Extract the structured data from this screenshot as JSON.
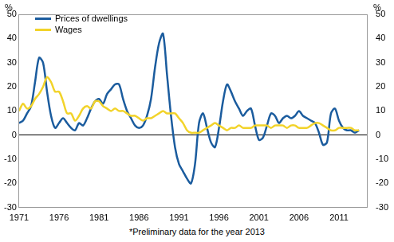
{
  "chart_data": {
    "type": "line",
    "y_label": "%",
    "y2_label": "%",
    "note": "*Preliminary data for the year 2013",
    "legend": "top-left",
    "grid": false,
    "x": [
      1971.0,
      1971.5,
      1972.0,
      1972.5,
      1973.0,
      1973.5,
      1974.0,
      1974.5,
      1975.0,
      1975.5,
      1976.0,
      1976.5,
      1977.0,
      1977.5,
      1978.0,
      1978.5,
      1979.0,
      1979.5,
      1980.0,
      1980.5,
      1981.0,
      1981.5,
      1982.0,
      1982.5,
      1983.0,
      1983.5,
      1984.0,
      1984.5,
      1985.0,
      1985.5,
      1986.0,
      1986.5,
      1987.0,
      1987.5,
      1988.0,
      1988.5,
      1989.0,
      1989.5,
      1990.0,
      1990.5,
      1991.0,
      1991.5,
      1992.0,
      1992.5,
      1993.0,
      1993.5,
      1994.0,
      1994.5,
      1995.0,
      1995.5,
      1996.0,
      1996.5,
      1997.0,
      1997.5,
      1998.0,
      1998.5,
      1999.0,
      1999.5,
      2000.0,
      2000.5,
      2001.0,
      2001.5,
      2002.0,
      2002.5,
      2003.0,
      2003.5,
      2004.0,
      2004.5,
      2005.0,
      2005.5,
      2006.0,
      2006.5,
      2007.0,
      2007.5,
      2008.0,
      2008.5,
      2009.0,
      2009.5,
      2010.0,
      2010.5,
      2011.0,
      2011.5,
      2012.0,
      2012.5,
      2013.0,
      2013.5
    ],
    "series": [
      {
        "name": "Prices of dwellings",
        "color": "#1b5c9e",
        "values": [
          5,
          6,
          9,
          12,
          22,
          32,
          30,
          18,
          8,
          3,
          5,
          7,
          5,
          3,
          2,
          5,
          4,
          7,
          11,
          14,
          15,
          13,
          17,
          19,
          21,
          21,
          15,
          10,
          7,
          4,
          3,
          4,
          8,
          15,
          28,
          38,
          42,
          25,
          8,
          -5,
          -12,
          -15,
          -18,
          -20,
          -12,
          5,
          9,
          3,
          -3,
          -5,
          3,
          14,
          21,
          18,
          14,
          11,
          8,
          10,
          11,
          4,
          -2,
          -1,
          4,
          9,
          8,
          5,
          7,
          8,
          7,
          8,
          10,
          8,
          7,
          6,
          5,
          1,
          -4,
          -3,
          9,
          11,
          6,
          3,
          2,
          2,
          1,
          2
        ]
      },
      {
        "name": "Wages",
        "color": "#f2d32a",
        "values": [
          10,
          13,
          11,
          12,
          15,
          17,
          20,
          24,
          22,
          18,
          18,
          14,
          9,
          9,
          6,
          8,
          11,
          12,
          11,
          14,
          14,
          12,
          11,
          10,
          11,
          10,
          10,
          9,
          8,
          8,
          7,
          6,
          7,
          7,
          8,
          9,
          10,
          9,
          9,
          9,
          7,
          5,
          2,
          1,
          1,
          1,
          2,
          3,
          4,
          5,
          4,
          3,
          2,
          3,
          3,
          4,
          3,
          3,
          3,
          4,
          4,
          4,
          4,
          3,
          4,
          4,
          4,
          3,
          4,
          4,
          3,
          3,
          3,
          4,
          5,
          5,
          4,
          3,
          2,
          2,
          3,
          3,
          3,
          3,
          2,
          2
        ]
      }
    ],
    "xlim": [
      1971,
      2014.5
    ],
    "xticks": [
      1971,
      1976,
      1981,
      1986,
      1991,
      1996,
      2001,
      2006,
      2011
    ],
    "ylim": [
      -30,
      50
    ],
    "yticks": [
      -30,
      -20,
      -10,
      0,
      10,
      20,
      30,
      40,
      50
    ],
    "y2lim": [
      -30,
      50
    ],
    "y2ticks": [
      -30,
      -20,
      -10,
      0,
      10,
      20,
      30,
      40,
      50
    ]
  }
}
